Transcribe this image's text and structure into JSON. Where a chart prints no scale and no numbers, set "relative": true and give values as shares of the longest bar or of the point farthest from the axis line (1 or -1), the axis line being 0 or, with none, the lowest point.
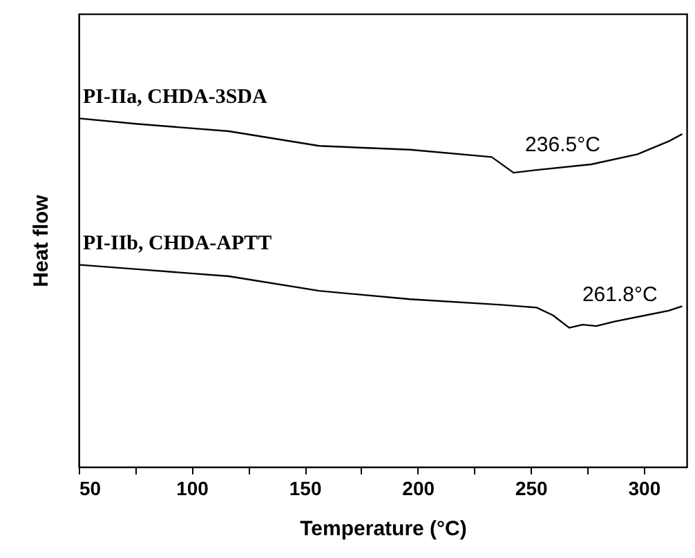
{
  "chart_data": {
    "type": "line",
    "xlabel": "Temperature (°C)",
    "ylabel": "Heat flow",
    "relative": true,
    "xlim": [
      50,
      319
    ],
    "xticks": [
      50,
      {
        "value": 75,
        "label": null
      },
      100,
      {
        "value": 125,
        "label": null
      },
      150,
      {
        "value": 175,
        "label": null
      },
      200,
      {
        "value": 225,
        "label": null
      },
      250,
      {
        "value": 275,
        "label": null
      },
      300
    ],
    "grid": false,
    "marker": "none",
    "line_style": "solid",
    "series": [
      {
        "name": "PI-IIa, CHDA-3SDA",
        "color": "#000000",
        "x": [
          50,
          76,
          116.4,
          156.4,
          196.6,
          232.7,
          242.4,
          252.6,
          276.7,
          297.2,
          311,
          317
        ],
        "values": [
          1,
          0.984,
          0.963,
          0.921,
          0.91,
          0.889,
          0.844,
          0.852,
          0.868,
          0.897,
          0.934,
          0.955
        ]
      },
      {
        "name": "PI-IIb, CHDA-APTT",
        "color": "#000000",
        "x": [
          50,
          76,
          116.4,
          156.4,
          196.6,
          236.9,
          252.6,
          259.8,
          267,
          273,
          279,
          287,
          300.9,
          311,
          317
        ],
        "values": [
          0.58,
          0.567,
          0.547,
          0.505,
          0.481,
          0.465,
          0.457,
          0.435,
          0.399,
          0.408,
          0.404,
          0.417,
          0.435,
          0.448,
          0.461
        ]
      }
    ],
    "annotations": [
      {
        "text": "236.5°C",
        "x": 236.5,
        "y": 0.87
      },
      {
        "text": "261.8°C",
        "x": 261.8,
        "y": 0.44
      }
    ]
  }
}
